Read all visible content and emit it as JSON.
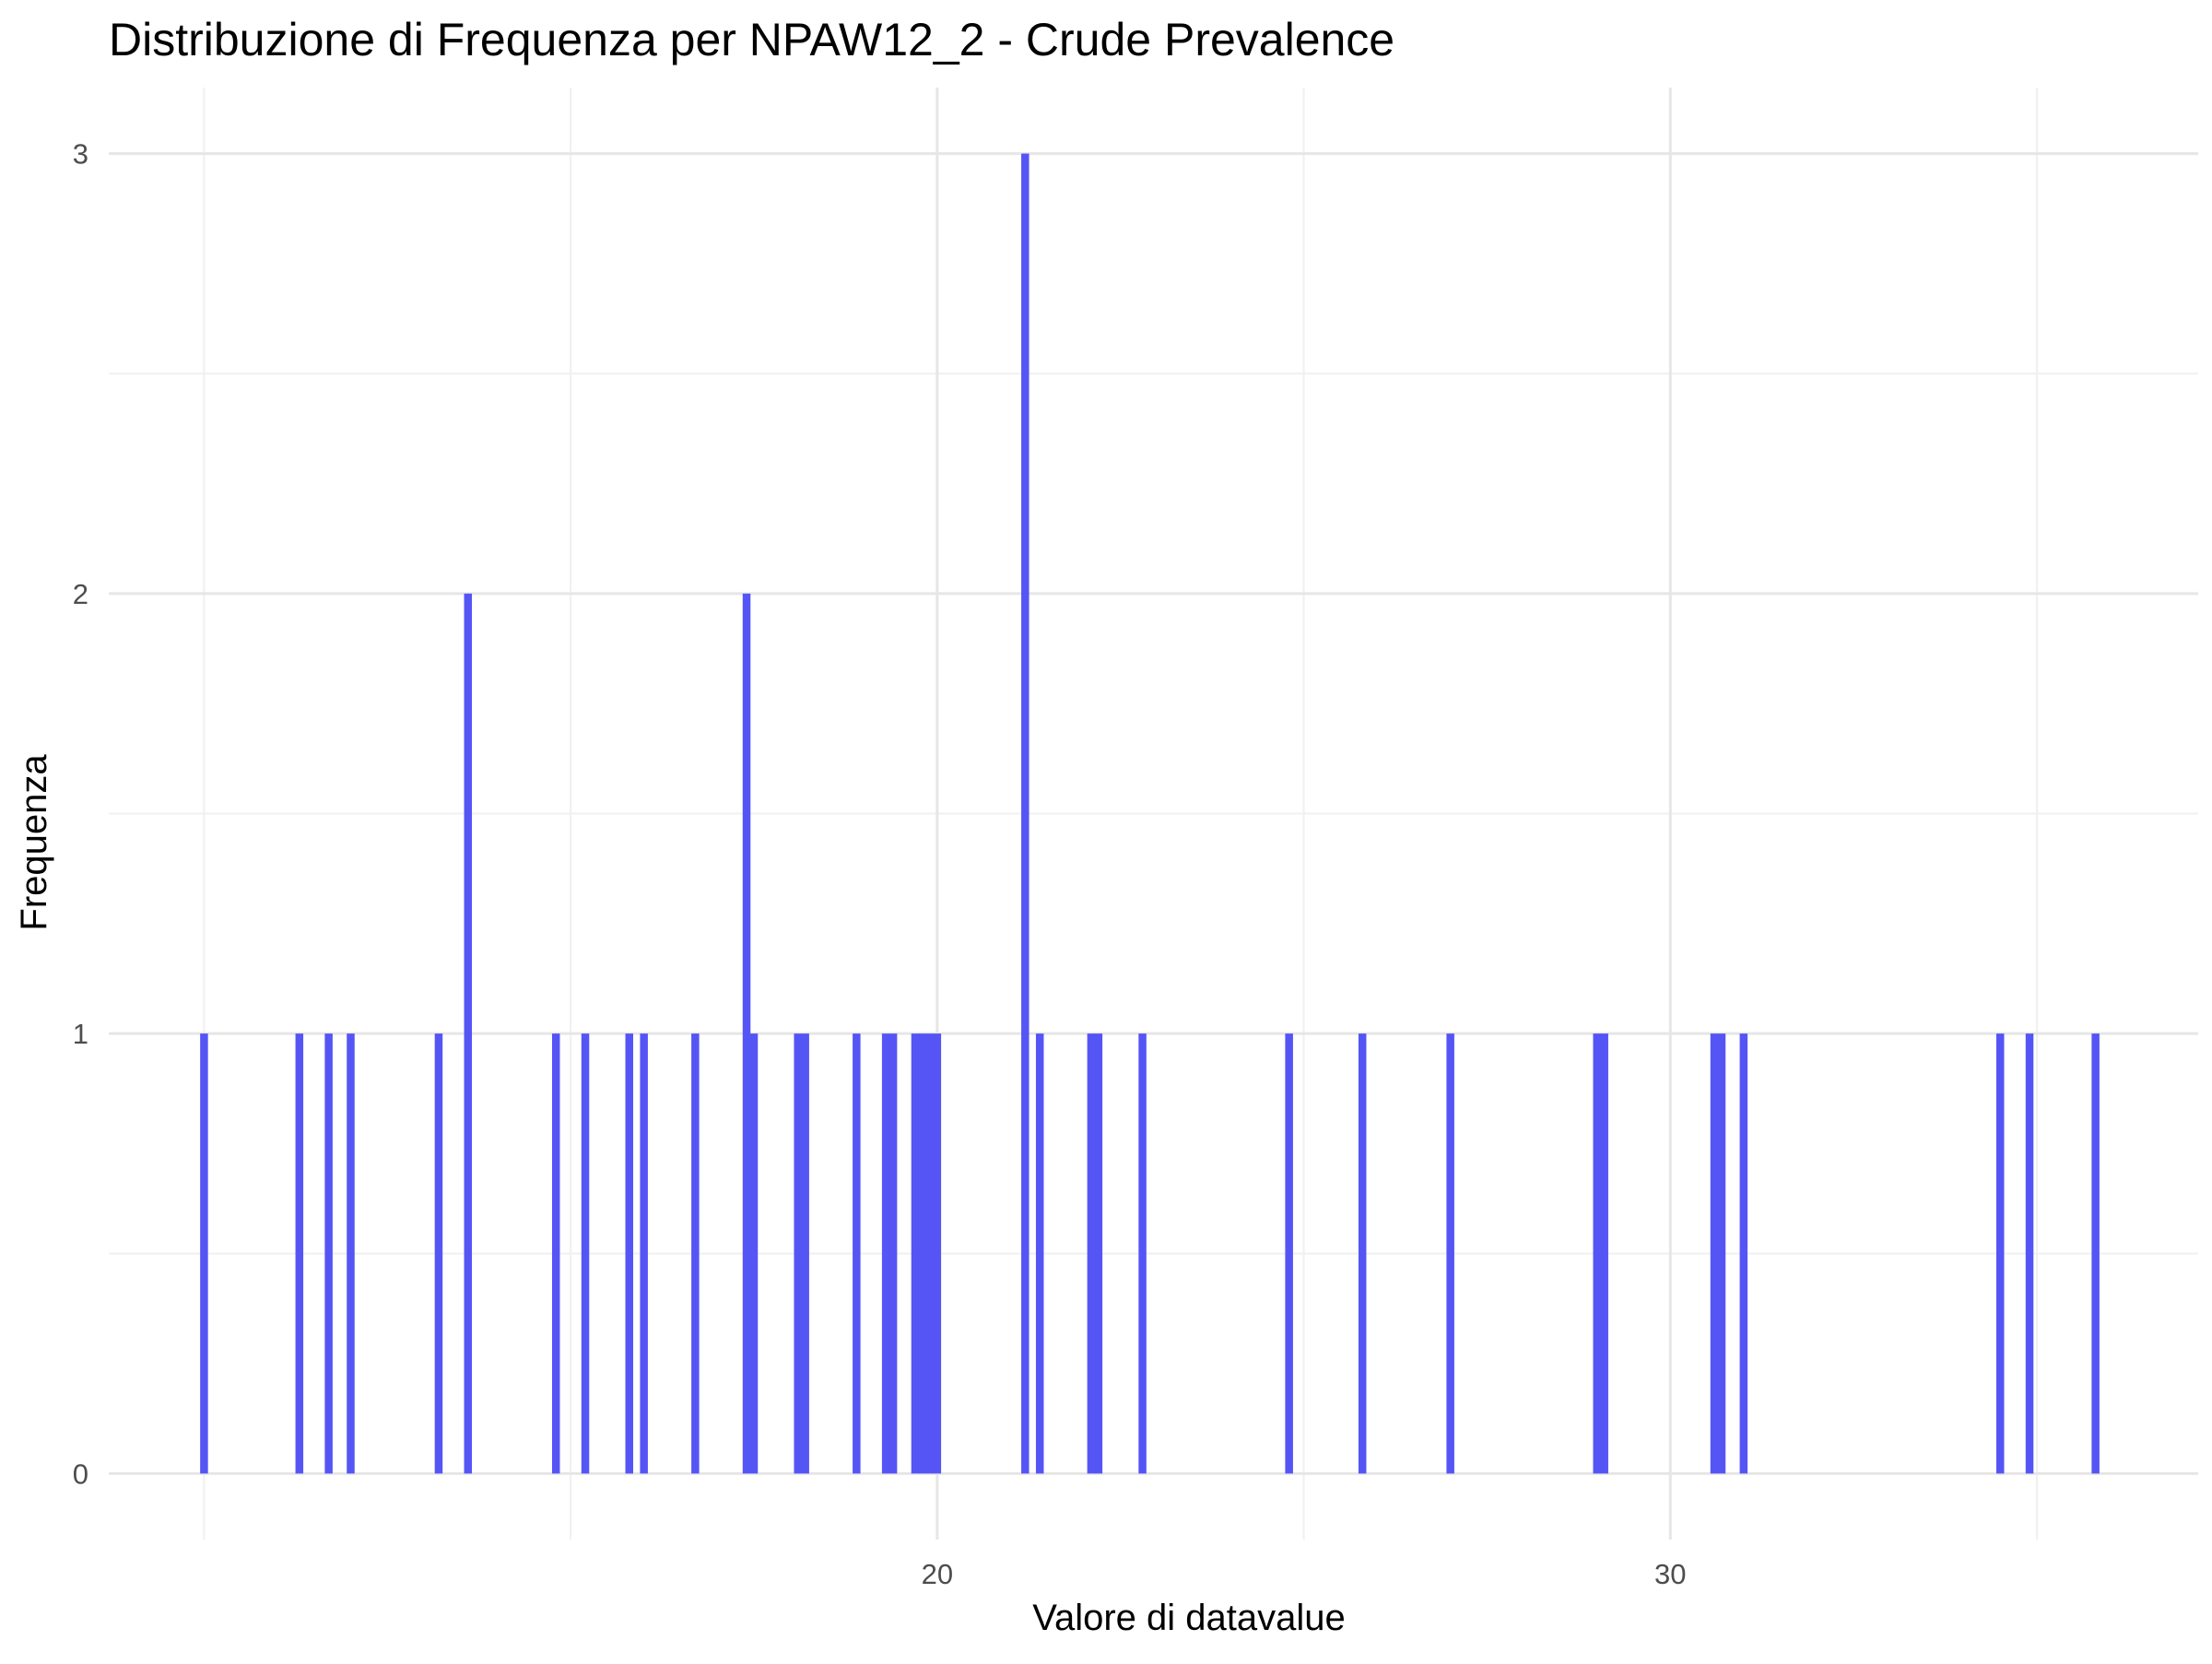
{
  "chart_data": {
    "type": "bar",
    "title": "Distribuzione di Frequenza per NPAW12_2 - Crude Prevalence",
    "xlabel": "Valore di datavalue",
    "ylabel": "Frequenza",
    "xlim": [
      8.7,
      37.2
    ],
    "ylim": [
      -0.15,
      3.15
    ],
    "x_ticks": [
      20,
      30
    ],
    "y_ticks": [
      0,
      1,
      2,
      3
    ],
    "grid": true,
    "bar_color": "#5555f5",
    "bins": [
      {
        "x": 10.0,
        "count": 1
      },
      {
        "x": 11.3,
        "count": 1
      },
      {
        "x": 11.7,
        "count": 1
      },
      {
        "x": 12.0,
        "count": 1
      },
      {
        "x": 13.2,
        "count": 1
      },
      {
        "x": 13.6,
        "count": 2
      },
      {
        "x": 14.8,
        "count": 1
      },
      {
        "x": 15.2,
        "count": 1
      },
      {
        "x": 15.8,
        "count": 1
      },
      {
        "x": 16.0,
        "count": 1
      },
      {
        "x": 16.7,
        "count": 1
      },
      {
        "x": 17.4,
        "count": 2
      },
      {
        "x": 17.5,
        "count": 1
      },
      {
        "x": 18.1,
        "count": 1
      },
      {
        "x": 18.2,
        "count": 1
      },
      {
        "x": 18.9,
        "count": 1
      },
      {
        "x": 19.3,
        "count": 1
      },
      {
        "x": 19.4,
        "count": 1
      },
      {
        "x": 19.7,
        "count": 1
      },
      {
        "x": 19.8,
        "count": 1
      },
      {
        "x": 19.9,
        "count": 1
      },
      {
        "x": 20.0,
        "count": 1
      },
      {
        "x": 21.2,
        "count": 3
      },
      {
        "x": 21.4,
        "count": 1
      },
      {
        "x": 22.1,
        "count": 1
      },
      {
        "x": 22.2,
        "count": 1
      },
      {
        "x": 22.8,
        "count": 1
      },
      {
        "x": 24.8,
        "count": 1
      },
      {
        "x": 25.8,
        "count": 1
      },
      {
        "x": 27.0,
        "count": 1
      },
      {
        "x": 29.0,
        "count": 1
      },
      {
        "x": 29.1,
        "count": 1
      },
      {
        "x": 30.6,
        "count": 1
      },
      {
        "x": 30.7,
        "count": 1
      },
      {
        "x": 31.0,
        "count": 1
      },
      {
        "x": 34.5,
        "count": 1
      },
      {
        "x": 34.9,
        "count": 1
      },
      {
        "x": 35.8,
        "count": 1
      }
    ]
  }
}
